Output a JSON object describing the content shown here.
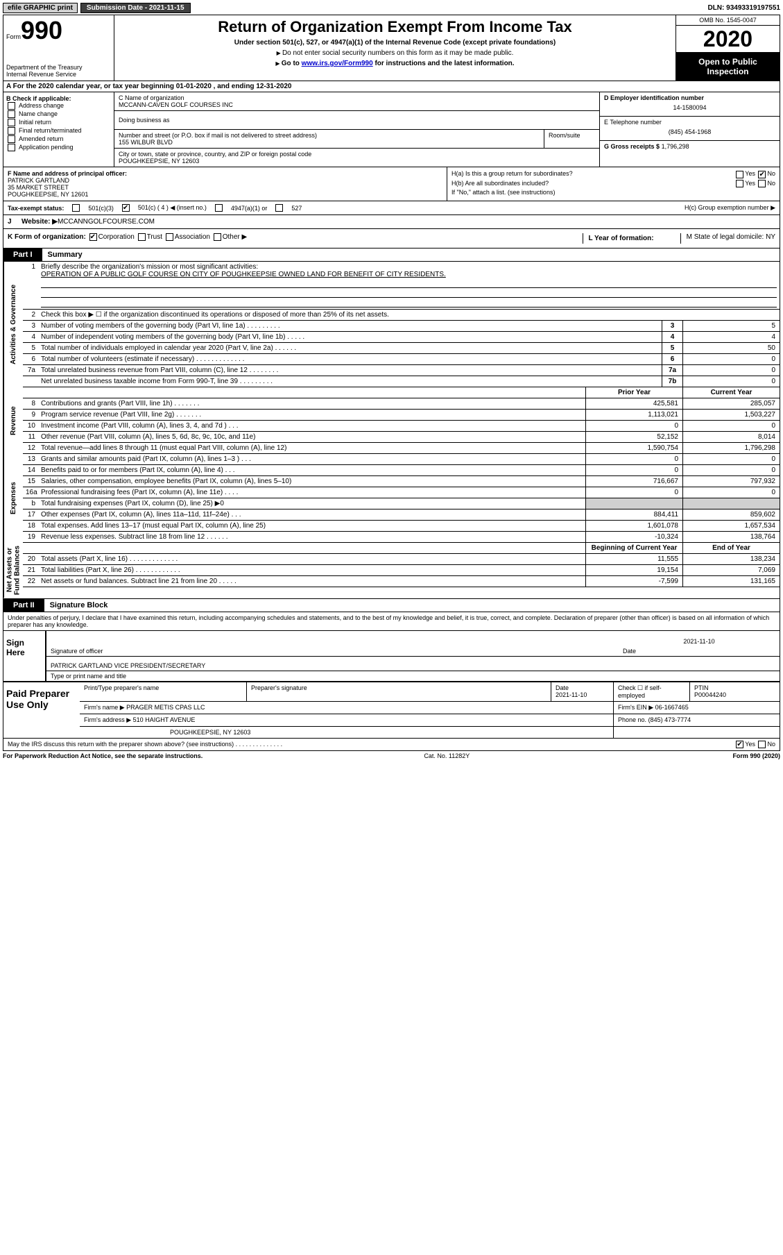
{
  "topbar": {
    "efile_label": "efile GRAPHIC print",
    "submission_label": "Submission Date - 2021-11-15",
    "dln_label": "DLN: 93493319197551"
  },
  "header": {
    "form_label": "Form",
    "form_num": "990",
    "dept": "Department of the Treasury\nInternal Revenue Service",
    "title": "Return of Organization Exempt From Income Tax",
    "subtitle": "Under section 501(c), 527, or 4947(a)(1) of the Internal Revenue Code (except private foundations)",
    "sub2": "Do not enter social security numbers on this form as it may be made public.",
    "sub3_pre": "Go to ",
    "sub3_link": "www.irs.gov/Form990",
    "sub3_post": " for instructions and the latest information.",
    "omb": "OMB No. 1545-0047",
    "year": "2020",
    "open": "Open to Public Inspection"
  },
  "rowA": "A For the 2020 calendar year, or tax year beginning 01-01-2020    , and ending 12-31-2020",
  "blockB": {
    "header": "B Check if applicable:",
    "items": [
      "Address change",
      "Name change",
      "Initial return",
      "Final return/terminated",
      "Amended return",
      "Application pending"
    ]
  },
  "blockC": {
    "name_label": "C Name of organization",
    "name": "MCCANN-CAVEN GOLF COURSES INC",
    "dba_label": "Doing business as",
    "street_label": "Number and street (or P.O. box if mail is not delivered to street address)",
    "street": "155 WILBUR BLVD",
    "room_label": "Room/suite",
    "city_label": "City or town, state or province, country, and ZIP or foreign postal code",
    "city": "POUGHKEEPSIE, NY  12603"
  },
  "blockD": {
    "ein_label": "D Employer identification number",
    "ein": "14-1580094",
    "tel_label": "E Telephone number",
    "tel": "(845) 454-1968",
    "gross_label": "G Gross receipts $",
    "gross": "1,796,298"
  },
  "blockF": {
    "label": "F  Name and address of principal officer:",
    "name": "PATRICK GARTLAND",
    "addr1": "35 MARKET STREET",
    "addr2": "POUGHKEEPSIE, NY  12601"
  },
  "blockH": {
    "ha_label": "H(a)  Is this a group return for subordinates?",
    "hb_label": "H(b)  Are all subordinates included?",
    "hb_note": "If \"No,\" attach a list. (see instructions)",
    "hc_label": "H(c)  Group exemption number ▶",
    "yes": "Yes",
    "no": "No"
  },
  "rowTax": {
    "label": "Tax-exempt status:",
    "c3": "501(c)(3)",
    "c": "501(c) ( 4 ) ◀ (insert no.)",
    "a": "4947(a)(1) or",
    "b": "527"
  },
  "rowJ": {
    "label": "J",
    "txt": "Website: ▶",
    "val": " MCCANNGOLFCOURSE.COM"
  },
  "rowK": {
    "k": "K Form of organization:",
    "corp": "Corporation",
    "trust": "Trust",
    "assoc": "Association",
    "other": "Other ▶",
    "l": "L Year of formation:",
    "m": "M State of legal domicile: NY"
  },
  "partI": {
    "tab": "Part I",
    "title": "Summary"
  },
  "partII": {
    "tab": "Part II",
    "title": "Signature Block"
  },
  "sideLabels": {
    "ag": "Activities & Governance",
    "rev": "Revenue",
    "exp": "Expenses",
    "na": "Net Assets or\nFund Balances"
  },
  "summary": {
    "mission_label": "Briefly describe the organization's mission or most significant activities:",
    "mission": "OPERATION OF A PUBLIC GOLF COURSE ON CITY OF POUGHKEEPSIE OWNED LAND FOR BENEFIT OF CITY RESIDENTS.",
    "l2": "Check this box ▶ ☐  if the organization discontinued its operations or disposed of more than 25% of its net assets.",
    "lines": {
      "3": {
        "t": "Number of voting members of the governing body (Part VI, line 1a)  .  .  .  .  .  .  .  .  .",
        "b": "3",
        "v": "5"
      },
      "4": {
        "t": "Number of independent voting members of the governing body (Part VI, line 1b)  .  .  .  .  .",
        "b": "4",
        "v": "4"
      },
      "5": {
        "t": "Total number of individuals employed in calendar year 2020 (Part V, line 2a)  .  .  .  .  .  .",
        "b": "5",
        "v": "50"
      },
      "6": {
        "t": "Total number of volunteers (estimate if necessary)  .  .  .  .  .  .  .  .  .  .  .  .  .",
        "b": "6",
        "v": "0"
      },
      "7a": {
        "t": "Total unrelated business revenue from Part VIII, column (C), line 12  .  .  .  .  .  .  .  .",
        "b": "7a",
        "v": "0"
      },
      "7b": {
        "t": "Net unrelated business taxable income from Form 990-T, line 39  .  .  .  .  .  .  .  .  .",
        "b": "7b",
        "v": "0"
      }
    },
    "cols": {
      "prior": "Prior Year",
      "curr": "Current Year",
      "boy": "Beginning of Current Year",
      "eoy": "End of Year"
    },
    "revenue": [
      {
        "n": "8",
        "t": "Contributions and grants (Part VIII, line 1h)  .  .  .  .  .  .  .",
        "p": "425,581",
        "c": "285,057"
      },
      {
        "n": "9",
        "t": "Program service revenue (Part VIII, line 2g)  .  .  .  .  .  .  .",
        "p": "1,113,021",
        "c": "1,503,227"
      },
      {
        "n": "10",
        "t": "Investment income (Part VIII, column (A), lines 3, 4, and 7d )  .  .  .",
        "p": "0",
        "c": "0"
      },
      {
        "n": "11",
        "t": "Other revenue (Part VIII, column (A), lines 5, 6d, 8c, 9c, 10c, and 11e)",
        "p": "52,152",
        "c": "8,014"
      },
      {
        "n": "12",
        "t": "Total revenue—add lines 8 through 11 (must equal Part VIII, column (A), line 12)",
        "p": "1,590,754",
        "c": "1,796,298"
      }
    ],
    "expenses": [
      {
        "n": "13",
        "t": "Grants and similar amounts paid (Part IX, column (A), lines 1–3 )  .  .  .",
        "p": "0",
        "c": "0"
      },
      {
        "n": "14",
        "t": "Benefits paid to or for members (Part IX, column (A), line 4)  .  .  .",
        "p": "0",
        "c": "0"
      },
      {
        "n": "15",
        "t": "Salaries, other compensation, employee benefits (Part IX, column (A), lines 5–10)",
        "p": "716,667",
        "c": "797,932"
      },
      {
        "n": "16a",
        "t": "Professional fundraising fees (Part IX, column (A), line 11e)  .  .  .  .",
        "p": "0",
        "c": "0"
      },
      {
        "n": "b",
        "t": "Total fundraising expenses (Part IX, column (D), line 25) ▶0",
        "p": "",
        "c": "",
        "shade": true
      },
      {
        "n": "17",
        "t": "Other expenses (Part IX, column (A), lines 11a–11d, 11f–24e)  .  .  .",
        "p": "884,411",
        "c": "859,602"
      },
      {
        "n": "18",
        "t": "Total expenses. Add lines 13–17 (must equal Part IX, column (A), line 25)",
        "p": "1,601,078",
        "c": "1,657,534"
      },
      {
        "n": "19",
        "t": "Revenue less expenses. Subtract line 18 from line 12  .  .  .  .  .  .",
        "p": "-10,324",
        "c": "138,764"
      }
    ],
    "netassets": [
      {
        "n": "20",
        "t": "Total assets (Part X, line 16)  .  .  .  .  .  .  .  .  .  .  .  .  .",
        "p": "11,555",
        "c": "138,234"
      },
      {
        "n": "21",
        "t": "Total liabilities (Part X, line 26)  .  .  .  .  .  .  .  .  .  .  .  .",
        "p": "19,154",
        "c": "7,069"
      },
      {
        "n": "22",
        "t": "Net assets or fund balances. Subtract line 21 from line 20  .  .  .  .  .",
        "p": "-7,599",
        "c": "131,165"
      }
    ]
  },
  "signature": {
    "declaration": "Under penalties of perjury, I declare that I have examined this return, including accompanying schedules and statements, and to the best of my knowledge and belief, it is true, correct, and complete. Declaration of preparer (other than officer) is based on all information of which preparer has any knowledge.",
    "sign_here": "Sign Here",
    "sig_officer_label": "Signature of officer",
    "date": "2021-11-10",
    "date_label": "Date",
    "officer": "PATRICK GARTLAND  VICE PRESIDENT/SECRETARY",
    "type_label": "Type or print name and title"
  },
  "preparer": {
    "label": "Paid Preparer Use Only",
    "print_label": "Print/Type preparer's name",
    "sig_label": "Preparer's signature",
    "date_label": "Date",
    "date": "2021-11-10",
    "check_label": "Check ☐ if self-employed",
    "ptin_label": "PTIN",
    "ptin": "P00044240",
    "firm_name_label": "Firm's name    ▶",
    "firm": "PRAGER METIS CPAS LLC",
    "firm_ein_label": "Firm's EIN ▶",
    "firm_ein": "06-1667465",
    "firm_addr_label": "Firm's address ▶",
    "addr1": "510 HAIGHT AVENUE",
    "addr2": "POUGHKEEPSIE, NY  12603",
    "phone_label": "Phone no.",
    "phone": "(845) 473-7774",
    "discuss": "May the IRS discuss this return with the preparer shown above? (see instructions)  .  .  .  .  .  .  .  .  .  .  .  .  .  .",
    "yes": "Yes",
    "no": "No"
  },
  "footer": {
    "left": "For Paperwork Reduction Act Notice, see the separate instructions.",
    "mid": "Cat. No. 11282Y",
    "right": "Form 990 (2020)"
  }
}
